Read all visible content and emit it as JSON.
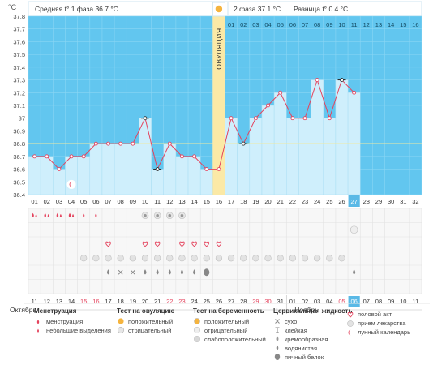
{
  "chart_data": {
    "type": "line",
    "unit_label": "°C",
    "ovulation_label": "ОВУЛЯЦИЯ",
    "ovulation_day": 16,
    "phase1_label": "Средняя t° 1 фаза 36.7 °C",
    "phase2_label": "2 фаза 37.1 °C",
    "diff_label": "Разница t° 0.4 °C",
    "coverline": 36.8,
    "ylim": [
      36.4,
      37.8
    ],
    "y_ticks": [
      "36.4",
      "36.5",
      "36.6",
      "36.7",
      "36.8",
      "36.9",
      "37",
      "37.1",
      "37.2",
      "37.3",
      "37.4",
      "37.5",
      "37.6",
      "37.7",
      "37.8"
    ],
    "cycle_days": [
      "01",
      "02",
      "03",
      "04",
      "05",
      "06",
      "07",
      "08",
      "09",
      "10",
      "11",
      "12",
      "13",
      "14",
      "15",
      "16",
      "17",
      "18",
      "19",
      "20",
      "21",
      "22",
      "23",
      "24",
      "25",
      "26",
      "27",
      "28",
      "29",
      "30",
      "31",
      "32"
    ],
    "phase2_days": [
      "01",
      "02",
      "03",
      "04",
      "05",
      "06",
      "07",
      "08",
      "09",
      "10",
      "11",
      "12",
      "13",
      "14",
      "15",
      "16"
    ],
    "current_day": "27",
    "temperatures": [
      36.7,
      36.7,
      36.6,
      36.7,
      36.7,
      36.8,
      36.8,
      36.8,
      36.8,
      37.0,
      36.6,
      36.8,
      36.7,
      36.7,
      36.6,
      36.6,
      37.0,
      36.8,
      37.0,
      37.1,
      37.2,
      37.0,
      37.0,
      37.3,
      37.0,
      37.3,
      37.2,
      null,
      null,
      null,
      null,
      null
    ],
    "excluded_days": [
      10,
      11,
      18,
      26
    ],
    "calendar_dates": [
      "11",
      "12",
      "13",
      "14",
      "15",
      "16",
      "17",
      "18",
      "19",
      "20",
      "21",
      "22",
      "23",
      "24",
      "25",
      "26",
      "27",
      "28",
      "29",
      "30",
      "31",
      "01",
      "02",
      "03",
      "04",
      "05",
      "06",
      "07",
      "08",
      "09",
      "10",
      "11"
    ],
    "weekend_days": [
      5,
      6,
      12,
      13,
      19,
      20,
      26,
      27
    ],
    "months": [
      "Октябрь",
      "Ноябрь"
    ],
    "rows": {
      "menstruation": {
        "1": "large",
        "2": "large",
        "3": "large",
        "4": "large",
        "5": "small",
        "6": "small"
      },
      "ovulation_test": {
        "10": "negative",
        "11": "negative",
        "12": "negative",
        "13": "negative"
      },
      "pregnancy_test": {
        "27": "negative"
      },
      "intercourse": [
        7,
        10,
        11,
        13,
        14,
        15,
        16
      ],
      "medication": [
        5,
        6,
        7,
        8,
        9,
        10,
        11,
        12,
        13,
        14,
        15,
        16,
        17,
        18,
        19,
        20,
        21,
        22,
        23,
        24,
        25,
        26
      ],
      "mucus": {
        "7": "watery",
        "8": "dry",
        "9": "dry",
        "10": "watery",
        "11": "watery",
        "12": "watery",
        "13": "watery",
        "14": "watery",
        "15": "eggwhite",
        "27": "watery"
      }
    },
    "legend": {
      "menstruation": {
        "title": "Менструация",
        "items": [
          "менструация",
          "небольшие выделения"
        ]
      },
      "ovulation_test": {
        "title": "Тест на овуляцию",
        "items": [
          "положительный",
          "отрицательный"
        ]
      },
      "pregnancy_test": {
        "title": "Тест на беременность",
        "items": [
          "положительный",
          "отрицательный",
          "слабоположительный"
        ]
      },
      "mucus": {
        "title": "Цервикальная жидкость",
        "items": [
          "сухо",
          "клейкая",
          "кремообразная",
          "водянистая",
          "яичный белок"
        ]
      },
      "other": {
        "items": [
          "половой акт",
          "прием лекарства",
          "лунный календарь"
        ]
      }
    },
    "colors": {
      "sky": "#62C6EF",
      "bar": "#CFEFFC",
      "bar_stroke": "#A9DEF3",
      "line": "#E4435D",
      "ovulation": "#FBE9A6",
      "coverline": "#EFE9A3",
      "accent_day": "#5AB9E6",
      "weekend": "#E4435D"
    }
  }
}
